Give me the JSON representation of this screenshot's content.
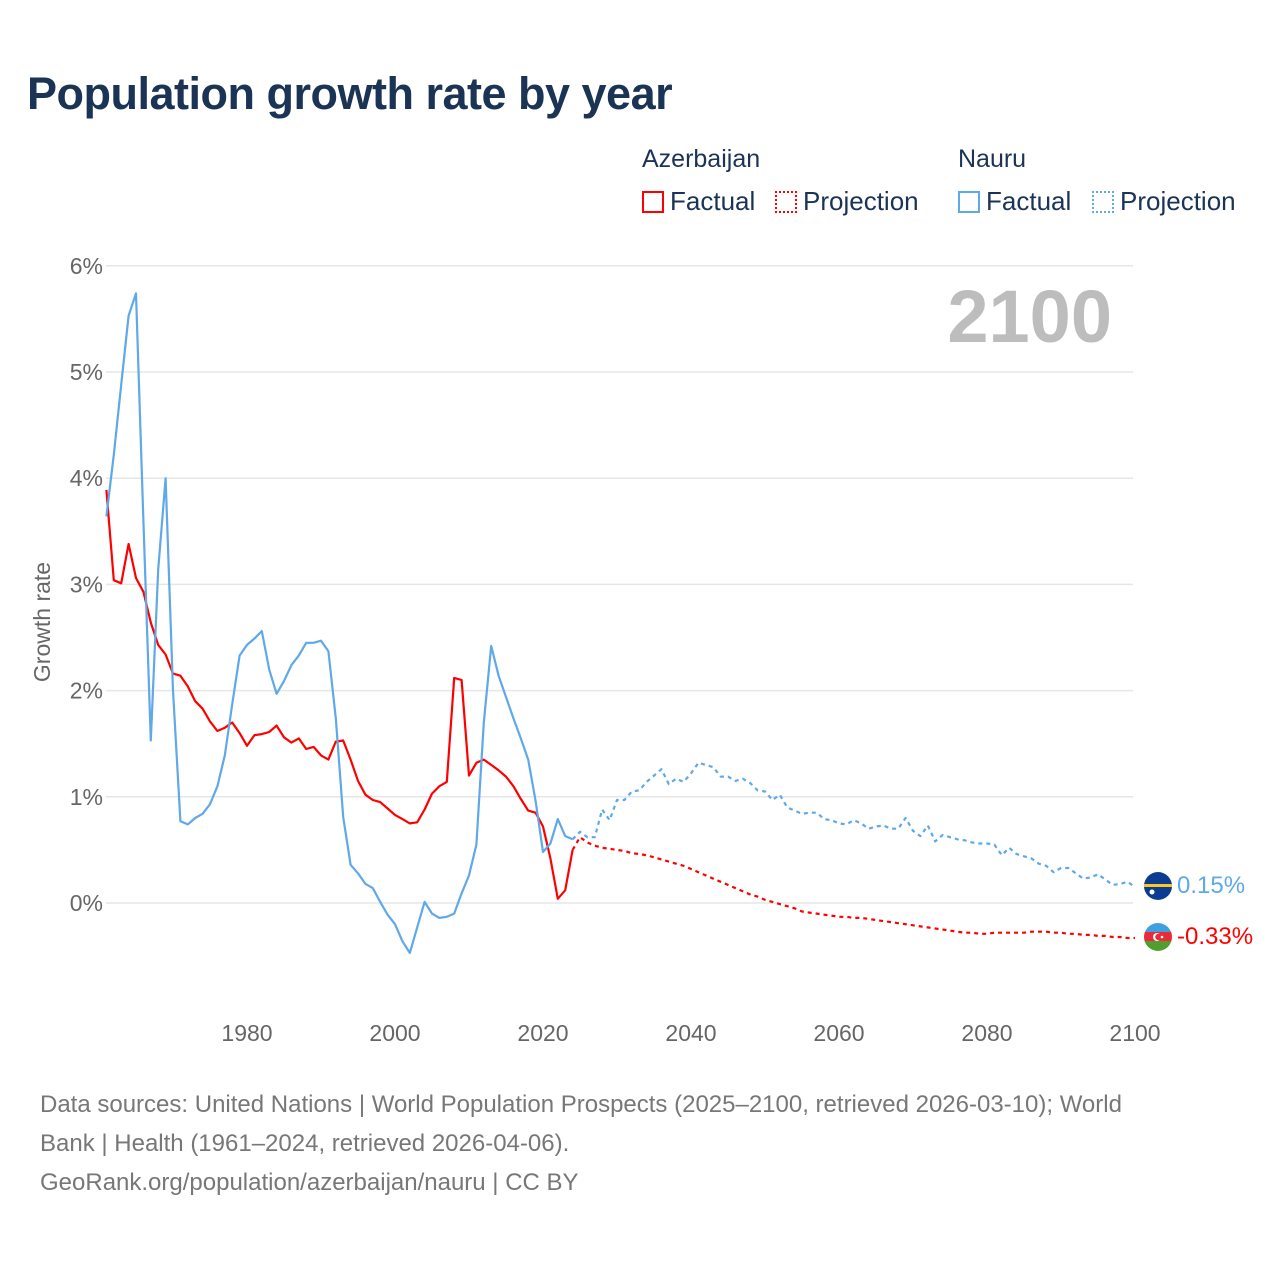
{
  "title": "Population growth rate by year",
  "legend": {
    "groups": [
      {
        "country": "Azerbaijan",
        "factual": "Factual",
        "projection": "Projection",
        "color": "#ff0000"
      },
      {
        "country": "Nauru",
        "factual": "Factual",
        "projection": "Projection",
        "color": "#5fa8ea"
      }
    ]
  },
  "year_display": "2100",
  "end_labels": {
    "nauru": "0.15%",
    "azerbaijan": "-0.33%"
  },
  "footer": {
    "line1": "Data sources: United Nations | World Population Prospects (2025–2100, retrieved 2026-03-10); World",
    "line2": "Bank | Health (1961–2024, retrieved 2026-04-06).",
    "line3": "GeoRank.org/population/azerbaijan/nauru | CC BY"
  },
  "chart_data": {
    "type": "line",
    "title": "Population growth rate by year",
    "xlabel": "",
    "ylabel": "Growth rate",
    "xlim": [
      1961,
      2100
    ],
    "ylim": [
      -0.8,
      6
    ],
    "xticks": [
      1980,
      2000,
      2020,
      2040,
      2060,
      2080,
      2100
    ],
    "xtick_labels": [
      "1980",
      "2000",
      "2020",
      "2040",
      "2060",
      "2080",
      "2100"
    ],
    "yticks": [
      0,
      1,
      2,
      3,
      4,
      5,
      6
    ],
    "ytick_labels": [
      "0%",
      "1%",
      "2%",
      "3%",
      "4%",
      "5%",
      "6%"
    ],
    "grid": true,
    "legend_position": "top-right",
    "series": [
      {
        "name": "Azerbaijan Factual",
        "color": "#ff0000",
        "style": "solid",
        "start_year": 1961,
        "values": [
          3.89,
          3.04,
          3.01,
          3.38,
          3.06,
          2.93,
          2.64,
          2.43,
          2.34,
          2.16,
          2.14,
          2.04,
          1.9,
          1.83,
          1.71,
          1.62,
          1.65,
          1.7,
          1.6,
          1.48,
          1.58,
          1.59,
          1.61,
          1.67,
          1.56,
          1.51,
          1.55,
          1.45,
          1.47,
          1.39,
          1.35,
          1.52,
          1.53,
          1.35,
          1.15,
          1.02,
          0.97,
          0.95,
          0.89,
          0.83,
          0.79,
          0.75,
          0.76,
          0.88,
          1.03,
          1.1,
          1.14,
          2.12,
          2.1,
          1.2,
          1.32,
          1.35,
          1.3,
          1.25,
          1.19,
          1.1,
          0.98,
          0.87,
          0.85,
          0.72,
          0.42,
          0.04,
          0.12,
          0.5
        ]
      },
      {
        "name": "Azerbaijan Projection",
        "color": "#ff0000",
        "style": "dotted",
        "start_year": 2024,
        "values": [
          0.5,
          0.62,
          0.57,
          0.54,
          0.52,
          0.51,
          0.5,
          0.49,
          0.47,
          0.46,
          0.45,
          0.43,
          0.41,
          0.39,
          0.37,
          0.35,
          0.32,
          0.29,
          0.26,
          0.23,
          0.2,
          0.17,
          0.14,
          0.11,
          0.08,
          0.06,
          0.03,
          0.01,
          -0.01,
          -0.03,
          -0.05,
          -0.08,
          -0.09,
          -0.1,
          -0.11,
          -0.12,
          -0.13,
          -0.13,
          -0.14,
          -0.14,
          -0.15,
          -0.16,
          -0.17,
          -0.18,
          -0.19,
          -0.2,
          -0.21,
          -0.22,
          -0.23,
          -0.24,
          -0.25,
          -0.26,
          -0.27,
          -0.28,
          -0.28,
          -0.29,
          -0.29,
          -0.28,
          -0.28,
          -0.28,
          -0.28,
          -0.28,
          -0.27,
          -0.27,
          -0.27,
          -0.28,
          -0.28,
          -0.29,
          -0.29,
          -0.3,
          -0.3,
          -0.31,
          -0.31,
          -0.32,
          -0.32,
          -0.33,
          -0.33
        ]
      },
      {
        "name": "Nauru Factual",
        "color": "#5fa8ea",
        "style": "solid",
        "start_year": 1961,
        "values": [
          3.64,
          4.22,
          4.88,
          5.53,
          5.74,
          3.6,
          1.53,
          3.14,
          4.0,
          2.0,
          0.77,
          0.74,
          0.8,
          0.84,
          0.93,
          1.1,
          1.39,
          1.87,
          2.33,
          2.43,
          2.49,
          2.56,
          2.2,
          1.97,
          2.09,
          2.24,
          2.33,
          2.45,
          2.45,
          2.47,
          2.37,
          1.74,
          0.81,
          0.36,
          0.28,
          0.18,
          0.14,
          0.01,
          -0.11,
          -0.2,
          -0.36,
          -0.47,
          -0.23,
          0.01,
          -0.1,
          -0.14,
          -0.13,
          -0.1,
          0.09,
          0.26,
          0.55,
          1.7,
          2.42,
          2.14,
          1.94,
          1.74,
          1.55,
          1.35,
          0.96,
          0.48,
          0.56,
          0.79,
          0.63,
          0.6
        ]
      },
      {
        "name": "Nauru Projection",
        "color": "#5fa8ea",
        "style": "dotted",
        "start_year": 2024,
        "values": [
          0.6,
          0.67,
          0.62,
          0.62,
          0.88,
          0.78,
          0.97,
          0.97,
          1.05,
          1.06,
          1.14,
          1.2,
          1.26,
          1.12,
          1.17,
          1.14,
          1.22,
          1.32,
          1.3,
          1.28,
          1.19,
          1.19,
          1.15,
          1.17,
          1.13,
          1.06,
          1.05,
          0.97,
          1.02,
          0.9,
          0.87,
          0.84,
          0.85,
          0.85,
          0.79,
          0.78,
          0.75,
          0.74,
          0.78,
          0.75,
          0.7,
          0.72,
          0.73,
          0.7,
          0.7,
          0.8,
          0.68,
          0.63,
          0.73,
          0.58,
          0.64,
          0.62,
          0.6,
          0.59,
          0.57,
          0.56,
          0.56,
          0.55,
          0.45,
          0.52,
          0.46,
          0.44,
          0.42,
          0.37,
          0.35,
          0.29,
          0.33,
          0.33,
          0.28,
          0.23,
          0.24,
          0.27,
          0.22,
          0.17,
          0.18,
          0.2,
          0.15
        ]
      }
    ]
  }
}
